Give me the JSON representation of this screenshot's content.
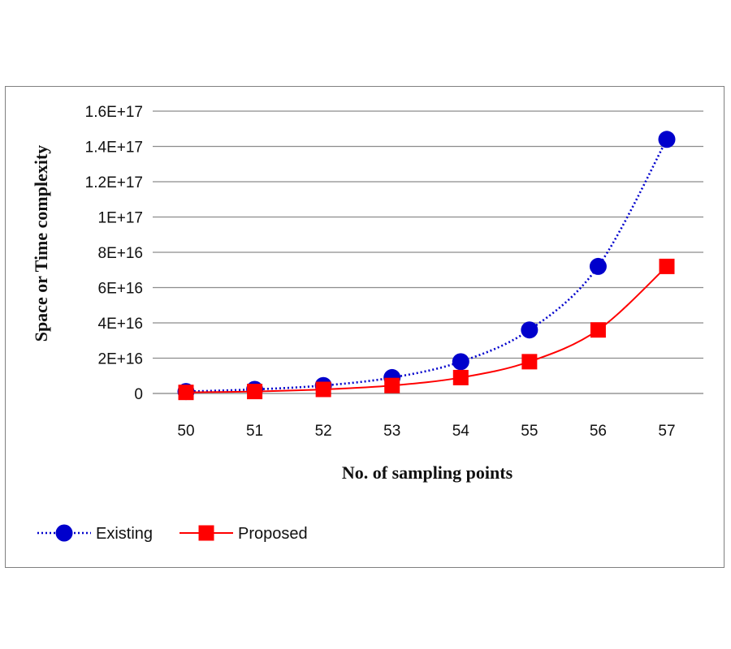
{
  "chart_data": {
    "type": "line",
    "title": "",
    "xlabel": "No. of sampling points",
    "ylabel": "Space or Time complexity",
    "categories": [
      "50",
      "51",
      "52",
      "53",
      "54",
      "55",
      "56",
      "57"
    ],
    "series": [
      {
        "name": "Existing",
        "color": "#0000cc",
        "line_style": "dotted",
        "marker": "circle",
        "values": [
          1100000000000000.0,
          2300000000000000.0,
          4500000000000000.0,
          9000000000000000.0,
          1.8e+16,
          3.6e+16,
          7.2e+16,
          1.44e+17
        ]
      },
      {
        "name": "Proposed",
        "color": "#ff0000",
        "line_style": "solid",
        "marker": "square",
        "values": [
          600000000000000.0,
          1100000000000000.0,
          2300000000000000.0,
          4500000000000000.0,
          9000000000000000.0,
          1.8e+16,
          3.6e+16,
          7.2e+16
        ]
      }
    ],
    "ylim": [
      0,
      1.6e+17
    ],
    "y_ticks": [
      0,
      2e+16,
      4e+16,
      6e+16,
      8e+16,
      1e+17,
      1.2e+17,
      1.4e+17,
      1.6e+17
    ],
    "y_tick_labels": [
      "0",
      "2E+16",
      "4E+16",
      "6E+16",
      "8E+16",
      "1E+17",
      "1.2E+17",
      "1.4E+17",
      "1.6E+17"
    ],
    "grid": "horizontal",
    "legend_position": "bottom-left"
  }
}
